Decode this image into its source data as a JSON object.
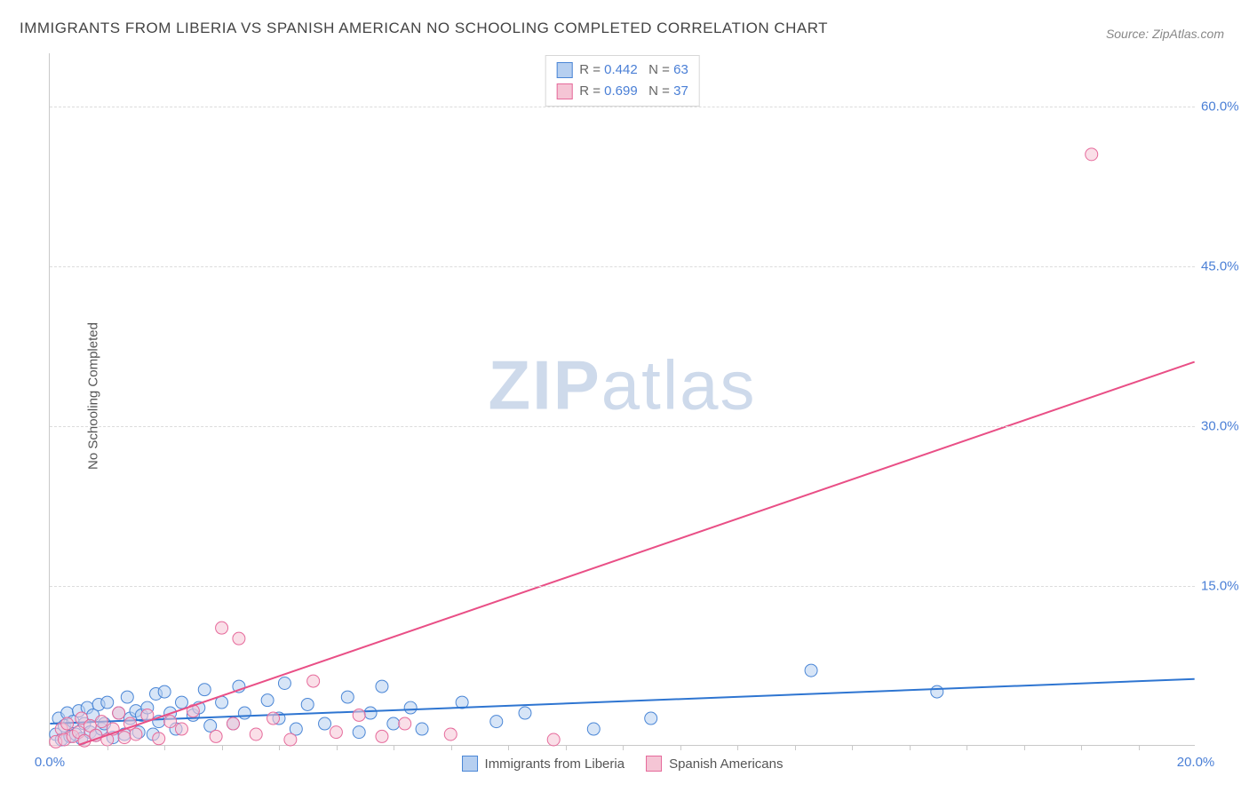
{
  "title": "IMMIGRANTS FROM LIBERIA VS SPANISH AMERICAN NO SCHOOLING COMPLETED CORRELATION CHART",
  "source": "Source: ZipAtlas.com",
  "ylabel": "No Schooling Completed",
  "watermark_a": "ZIP",
  "watermark_b": "atlas",
  "chart": {
    "type": "scatter-correlation",
    "background_color": "#ffffff",
    "grid_color": "#dcdcdc",
    "axis_color": "#c9c9c9",
    "tick_label_color": "#4a7fd6",
    "xlim": [
      0,
      20
    ],
    "ylim": [
      0,
      65
    ],
    "ytick_values": [
      15,
      30,
      45,
      60
    ],
    "ytick_labels": [
      "15.0%",
      "30.0%",
      "45.0%",
      "60.0%"
    ],
    "xtick_values": [
      0,
      20
    ],
    "xtick_labels": [
      "0.0%",
      "20.0%"
    ],
    "xtick_minor_step": 1,
    "marker_radius": 7,
    "marker_opacity": 0.55,
    "line_width": 2
  },
  "series": [
    {
      "key": "liberia",
      "label": "Immigrants from Liberia",
      "color_fill": "#b6cff0",
      "color_stroke": "#4a86d6",
      "line_color": "#2e75d1",
      "R": "0.442",
      "N": "63",
      "regression": {
        "x1": 0,
        "y1": 2.0,
        "x2": 20,
        "y2": 6.2
      },
      "points": [
        [
          0.1,
          1.0
        ],
        [
          0.15,
          2.5
        ],
        [
          0.2,
          0.5
        ],
        [
          0.25,
          1.8
        ],
        [
          0.3,
          3.0
        ],
        [
          0.35,
          0.8
        ],
        [
          0.4,
          2.2
        ],
        [
          0.45,
          1.0
        ],
        [
          0.5,
          3.2
        ],
        [
          0.55,
          0.6
        ],
        [
          0.6,
          2.0
        ],
        [
          0.65,
          3.5
        ],
        [
          0.7,
          1.2
        ],
        [
          0.75,
          2.8
        ],
        [
          0.8,
          0.9
        ],
        [
          0.85,
          3.8
        ],
        [
          0.9,
          1.5
        ],
        [
          0.95,
          2.0
        ],
        [
          1.0,
          4.0
        ],
        [
          1.1,
          0.7
        ],
        [
          1.2,
          3.0
        ],
        [
          1.3,
          1.0
        ],
        [
          1.35,
          4.5
        ],
        [
          1.4,
          2.5
        ],
        [
          1.5,
          3.2
        ],
        [
          1.55,
          1.2
        ],
        [
          1.6,
          2.8
        ],
        [
          1.7,
          3.5
        ],
        [
          1.8,
          1.0
        ],
        [
          1.85,
          4.8
        ],
        [
          1.9,
          2.2
        ],
        [
          2.0,
          5.0
        ],
        [
          2.1,
          3.0
        ],
        [
          2.2,
          1.5
        ],
        [
          2.3,
          4.0
        ],
        [
          2.5,
          2.8
        ],
        [
          2.6,
          3.5
        ],
        [
          2.7,
          5.2
        ],
        [
          2.8,
          1.8
        ],
        [
          3.0,
          4.0
        ],
        [
          3.2,
          2.0
        ],
        [
          3.3,
          5.5
        ],
        [
          3.4,
          3.0
        ],
        [
          3.8,
          4.2
        ],
        [
          4.0,
          2.5
        ],
        [
          4.1,
          5.8
        ],
        [
          4.3,
          1.5
        ],
        [
          4.5,
          3.8
        ],
        [
          4.8,
          2.0
        ],
        [
          5.2,
          4.5
        ],
        [
          5.4,
          1.2
        ],
        [
          5.6,
          3.0
        ],
        [
          5.8,
          5.5
        ],
        [
          6.0,
          2.0
        ],
        [
          6.3,
          3.5
        ],
        [
          6.5,
          1.5
        ],
        [
          7.2,
          4.0
        ],
        [
          7.8,
          2.2
        ],
        [
          8.3,
          3.0
        ],
        [
          9.5,
          1.5
        ],
        [
          10.5,
          2.5
        ],
        [
          13.3,
          7.0
        ],
        [
          15.5,
          5.0
        ]
      ]
    },
    {
      "key": "spanish",
      "label": "Spanish Americans",
      "color_fill": "#f5c5d5",
      "color_stroke": "#e66a9b",
      "line_color": "#e94f86",
      "R": "0.699",
      "N": "37",
      "regression": {
        "x1": 0.5,
        "y1": 0.0,
        "x2": 20,
        "y2": 36.0
      },
      "points": [
        [
          0.1,
          0.3
        ],
        [
          0.2,
          1.5
        ],
        [
          0.25,
          0.5
        ],
        [
          0.3,
          2.0
        ],
        [
          0.4,
          0.8
        ],
        [
          0.5,
          1.2
        ],
        [
          0.55,
          2.5
        ],
        [
          0.6,
          0.4
        ],
        [
          0.7,
          1.8
        ],
        [
          0.8,
          0.9
        ],
        [
          0.9,
          2.2
        ],
        [
          1.0,
          0.5
        ],
        [
          1.1,
          1.5
        ],
        [
          1.2,
          3.0
        ],
        [
          1.3,
          0.7
        ],
        [
          1.4,
          2.0
        ],
        [
          1.5,
          1.0
        ],
        [
          1.7,
          2.8
        ],
        [
          1.9,
          0.6
        ],
        [
          2.1,
          2.2
        ],
        [
          2.3,
          1.5
        ],
        [
          2.5,
          3.2
        ],
        [
          2.9,
          0.8
        ],
        [
          3.0,
          11.0
        ],
        [
          3.2,
          2.0
        ],
        [
          3.3,
          10.0
        ],
        [
          3.6,
          1.0
        ],
        [
          3.9,
          2.5
        ],
        [
          4.2,
          0.5
        ],
        [
          4.6,
          6.0
        ],
        [
          5.0,
          1.2
        ],
        [
          5.4,
          2.8
        ],
        [
          5.8,
          0.8
        ],
        [
          6.2,
          2.0
        ],
        [
          7.0,
          1.0
        ],
        [
          8.8,
          0.5
        ],
        [
          18.2,
          55.5
        ]
      ]
    }
  ],
  "legend_top": {
    "r_prefix": "R = ",
    "n_prefix": "N = "
  },
  "legend_bottom_labels": {
    "liberia": "Immigrants from Liberia",
    "spanish": "Spanish Americans"
  }
}
